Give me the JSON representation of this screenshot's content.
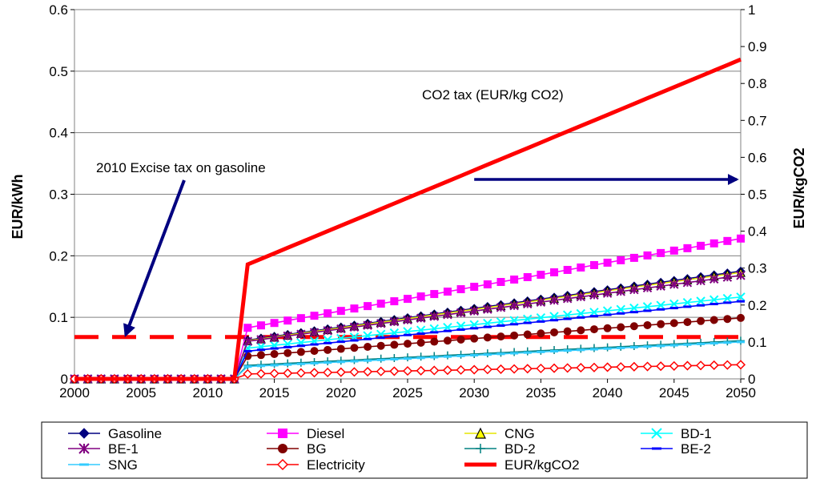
{
  "chart_data": {
    "type": "line",
    "x": [
      2000,
      2012,
      2013,
      2050
    ],
    "xlim": [
      2000,
      2050
    ],
    "xticks": [
      2000,
      2005,
      2010,
      2015,
      2020,
      2025,
      2030,
      2035,
      2040,
      2045,
      2050
    ],
    "ylabel": "EUR/kWh",
    "ylim": [
      0,
      0.6
    ],
    "yticks": [
      0,
      0.1,
      0.2,
      0.3,
      0.4,
      0.5,
      0.6
    ],
    "y2label": "EUR/kgCO2",
    "y2lim": [
      0,
      1
    ],
    "y2ticks": [
      0,
      0.1,
      0.2,
      0.3,
      0.4,
      0.5,
      0.6,
      0.7,
      0.8,
      0.9,
      1
    ],
    "grid": "horizontal",
    "legend_position": "bottom",
    "series": [
      {
        "name": "Gasoline",
        "axis": "left",
        "values": [
          0,
          0,
          0.063,
          0.175
        ],
        "color": "#000080",
        "marker": "diamond"
      },
      {
        "name": "Diesel",
        "axis": "left",
        "values": [
          0,
          0,
          0.083,
          0.228
        ],
        "color": "#ff00ff",
        "marker": "square"
      },
      {
        "name": "CNG",
        "axis": "left",
        "values": [
          0,
          0,
          0.062,
          0.173
        ],
        "color": "#e6e600",
        "marker": "triangle"
      },
      {
        "name": "BD-1",
        "axis": "left",
        "values": [
          0,
          0,
          0.05,
          0.133
        ],
        "color": "#00ffff",
        "marker": "x"
      },
      {
        "name": "BE-1",
        "axis": "left",
        "values": [
          0,
          0,
          0.061,
          0.168
        ],
        "color": "#800080",
        "marker": "star"
      },
      {
        "name": "BG",
        "axis": "left",
        "values": [
          0,
          0,
          0.037,
          0.099
        ],
        "color": "#800000",
        "marker": "circle"
      },
      {
        "name": "BD-2",
        "axis": "left",
        "values": [
          0,
          0,
          0.022,
          0.062
        ],
        "color": "#008080",
        "marker": "plus"
      },
      {
        "name": "BE-2",
        "axis": "left",
        "values": [
          0,
          0,
          0.045,
          0.126
        ],
        "color": "#0000ff",
        "marker": "dash"
      },
      {
        "name": "SNG",
        "axis": "left",
        "values": [
          0,
          0,
          0.02,
          0.06
        ],
        "color": "#33ccff",
        "marker": "dash"
      },
      {
        "name": "Electricity",
        "axis": "left",
        "values": [
          0,
          0,
          0.008,
          0.023
        ],
        "color": "#ff0000",
        "marker": "open-diamond"
      },
      {
        "name": "EUR/kgCO2",
        "axis": "right",
        "values": [
          0,
          0,
          0.31,
          0.865
        ],
        "color": "#ff0000",
        "marker": "none"
      }
    ],
    "reference_line": {
      "label": "2010 Excise tax on gasoline",
      "value": 0.068,
      "axis": "left",
      "style": "dashed",
      "color": "#ff0000"
    },
    "annotations": [
      {
        "text": "CO2 tax (EUR/kg CO2)"
      },
      {
        "text": "2010 Excise tax on gasoline"
      }
    ]
  }
}
